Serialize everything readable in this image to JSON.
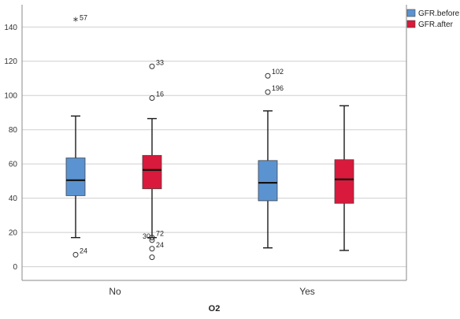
{
  "chart_data": {
    "type": "boxplot",
    "xlabel": "O2",
    "ylabel": "",
    "ylim": [
      -8,
      153
    ],
    "yticks": [
      0,
      20,
      40,
      60,
      80,
      100,
      120,
      140
    ],
    "grid": "horizontal",
    "legend_position": "top-right",
    "categories": [
      "No",
      "Yes"
    ],
    "series": [
      {
        "name": "GFR.before",
        "color": "#5b93d1",
        "boxes": [
          {
            "category": "No",
            "whisker_low": 17,
            "q1": 41.5,
            "median": 50.5,
            "q3": 63.5,
            "whisker_high": 88,
            "outliers": [
              {
                "value": 143,
                "label": "57",
                "marker": "star"
              },
              {
                "value": 7,
                "label": "24",
                "marker": "circle"
              }
            ]
          },
          {
            "category": "Yes",
            "whisker_low": 11,
            "q1": 38.5,
            "median": 49,
            "q3": 62,
            "whisker_high": 91,
            "outliers": [
              {
                "value": 111.5,
                "label": "102",
                "marker": "circle"
              },
              {
                "value": 102,
                "label": "196",
                "marker": "circle"
              }
            ]
          }
        ]
      },
      {
        "name": "GFR.after",
        "color": "#d91a3c",
        "boxes": [
          {
            "category": "No",
            "whisker_low": 17,
            "q1": 45.5,
            "median": 56.5,
            "q3": 65,
            "whisker_high": 86.5,
            "outliers": [
              {
                "value": 117,
                "label": "33",
                "marker": "circle"
              },
              {
                "value": 98.5,
                "label": "16",
                "marker": "circle"
              },
              {
                "value": 15.5,
                "label": "30",
                "marker": "circle"
              },
              {
                "value": 10.5,
                "label": "24",
                "marker": "circle"
              },
              {
                "value": 5.5,
                "label": "",
                "marker": "circle"
              },
              {
                "value": 17,
                "label": "72",
                "marker": "circle"
              }
            ]
          },
          {
            "category": "Yes",
            "whisker_low": 9.5,
            "q1": 37,
            "median": 51,
            "q3": 62.5,
            "whisker_high": 94,
            "outliers": []
          }
        ]
      }
    ]
  }
}
